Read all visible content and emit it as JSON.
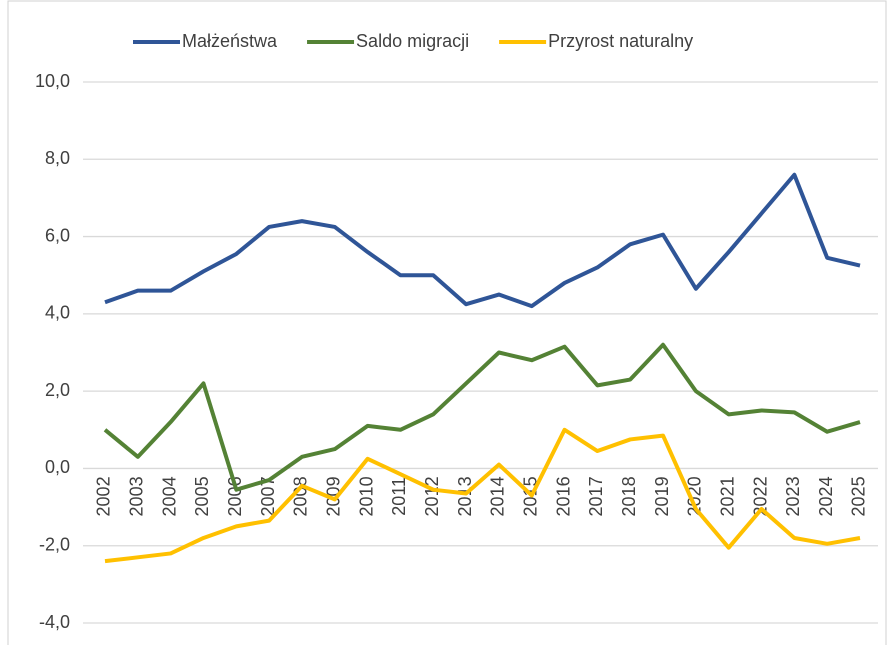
{
  "chart_data": {
    "type": "line",
    "categories": [
      "2002",
      "2003",
      "2004",
      "2005",
      "2006",
      "2007",
      "2008",
      "2009",
      "2010",
      "2011",
      "2012",
      "2013",
      "2014",
      "2015",
      "2016",
      "2017",
      "2018",
      "2019",
      "2020",
      "2021",
      "2022",
      "2023",
      "2024",
      "2025"
    ],
    "series": [
      {
        "name": "Małżeństwa",
        "color": "#2f5597",
        "values": [
          4.3,
          4.6,
          4.6,
          5.1,
          5.55,
          6.25,
          6.4,
          6.25,
          5.6,
          5.0,
          5.0,
          4.25,
          4.5,
          4.2,
          4.8,
          5.2,
          5.8,
          6.05,
          4.65,
          5.6,
          6.6,
          7.6,
          5.45,
          5.25
        ]
      },
      {
        "name": "Saldo migracji",
        "color": "#548235",
        "values": [
          1.0,
          0.3,
          1.2,
          2.2,
          -0.55,
          -0.3,
          0.3,
          0.5,
          1.1,
          1.0,
          1.4,
          2.2,
          3.0,
          2.8,
          3.15,
          2.15,
          2.3,
          3.2,
          2.0,
          1.4,
          1.5,
          1.45,
          0.95,
          1.2
        ]
      },
      {
        "name": "Przyrost naturalny",
        "color": "#ffc000",
        "values": [
          -2.4,
          -2.3,
          -2.2,
          -1.8,
          -1.5,
          -1.35,
          -0.45,
          -0.8,
          0.25,
          -0.15,
          -0.55,
          -0.65,
          0.1,
          -0.7,
          1.0,
          0.45,
          0.75,
          0.85,
          -1.05,
          -2.05,
          -1.05,
          -1.8,
          -1.95,
          -1.8
        ]
      }
    ],
    "ylim": [
      -4,
      10
    ],
    "yticks": [
      {
        "value": -4,
        "label": "-4,0"
      },
      {
        "value": -2,
        "label": "-2,0"
      },
      {
        "value": 0,
        "label": "0,0"
      },
      {
        "value": 2,
        "label": "2,0"
      },
      {
        "value": 4,
        "label": "4,0"
      },
      {
        "value": 6,
        "label": "6,0"
      },
      {
        "value": 8,
        "label": "8,0"
      },
      {
        "value": 10,
        "label": "10,0"
      }
    ],
    "grid": true,
    "legend": "top"
  }
}
